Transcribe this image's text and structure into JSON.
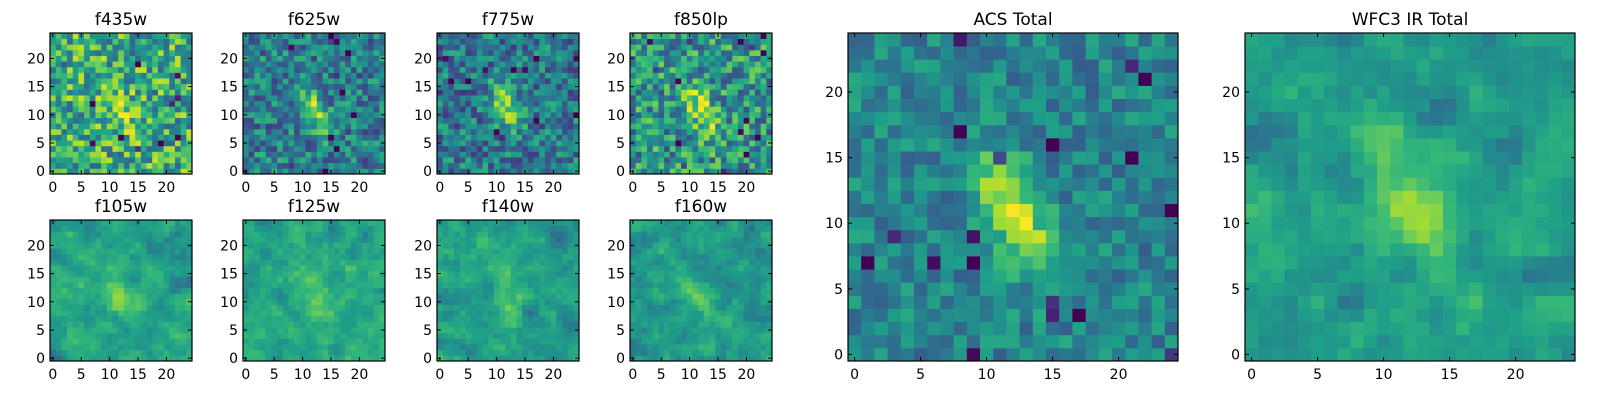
{
  "chart_data": {
    "type": "heatmap",
    "colormap": "viridis",
    "grid_size": 25,
    "panels": [
      {
        "title": "f435w",
        "kind": "noisy",
        "blob_strength": 0.18,
        "noise": 0.3,
        "base": 0.62,
        "xticks": [
          "0",
          "5",
          "10",
          "15",
          "20"
        ],
        "yticks": [
          "0",
          "5",
          "10",
          "15",
          "20"
        ],
        "xlim": [
          0,
          25
        ],
        "ylim": [
          0,
          25
        ]
      },
      {
        "title": "f625w",
        "kind": "noisy",
        "blob_strength": 0.45,
        "noise": 0.24,
        "base": 0.42,
        "xticks": [
          "0",
          "5",
          "10",
          "15",
          "20"
        ],
        "yticks": [
          "0",
          "5",
          "10",
          "15",
          "20"
        ],
        "xlim": [
          0,
          25
        ],
        "ylim": [
          0,
          25
        ]
      },
      {
        "title": "f775w",
        "kind": "noisy",
        "blob_strength": 0.45,
        "noise": 0.24,
        "base": 0.4,
        "xticks": [
          "0",
          "5",
          "10",
          "15",
          "20"
        ],
        "yticks": [
          "0",
          "5",
          "10",
          "15",
          "20"
        ],
        "xlim": [
          0,
          25
        ],
        "ylim": [
          0,
          25
        ]
      },
      {
        "title": "f850lp",
        "kind": "noisy",
        "blob_strength": 0.4,
        "noise": 0.28,
        "base": 0.52,
        "xticks": [
          "0",
          "5",
          "10",
          "15",
          "20"
        ],
        "yticks": [
          "0",
          "5",
          "10",
          "15",
          "20"
        ],
        "xlim": [
          0,
          25
        ],
        "ylim": [
          0,
          25
        ]
      },
      {
        "title": "f105w",
        "kind": "smooth",
        "blob_strength": 0.28,
        "noise": 0.22,
        "base": 0.58,
        "xticks": [
          "0",
          "5",
          "10",
          "15",
          "20"
        ],
        "yticks": [
          "0",
          "5",
          "10",
          "15",
          "20"
        ],
        "xlim": [
          0,
          25
        ],
        "ylim": [
          0,
          25
        ]
      },
      {
        "title": "f125w",
        "kind": "smooth",
        "blob_strength": 0.26,
        "noise": 0.22,
        "base": 0.6,
        "xticks": [
          "0",
          "5",
          "10",
          "15",
          "20"
        ],
        "yticks": [
          "0",
          "5",
          "10",
          "15",
          "20"
        ],
        "xlim": [
          0,
          25
        ],
        "ylim": [
          0,
          25
        ]
      },
      {
        "title": "f140w",
        "kind": "smooth",
        "blob_strength": 0.3,
        "noise": 0.22,
        "base": 0.56,
        "xticks": [
          "0",
          "5",
          "10",
          "15",
          "20"
        ],
        "yticks": [
          "0",
          "5",
          "10",
          "15",
          "20"
        ],
        "xlim": [
          0,
          25
        ],
        "ylim": [
          0,
          25
        ]
      },
      {
        "title": "f160w",
        "kind": "smooth",
        "blob_strength": 0.24,
        "noise": 0.24,
        "base": 0.55,
        "xticks": [
          "0",
          "5",
          "10",
          "15",
          "20"
        ],
        "yticks": [
          "0",
          "5",
          "10",
          "15",
          "20"
        ],
        "xlim": [
          0,
          25
        ],
        "ylim": [
          0,
          25
        ]
      },
      {
        "title": "ACS Total",
        "kind": "noisy",
        "blob_strength": 0.55,
        "noise": 0.16,
        "base": 0.45,
        "xticks": [
          "0",
          "5",
          "10",
          "15",
          "20"
        ],
        "yticks": [
          "0",
          "5",
          "10",
          "15",
          "20"
        ],
        "xlim": [
          0,
          25
        ],
        "ylim": [
          0,
          25
        ]
      },
      {
        "title": "WFC3 IR Total",
        "kind": "smooth",
        "blob_strength": 0.32,
        "noise": 0.2,
        "base": 0.56,
        "xticks": [
          "0",
          "5",
          "10",
          "15",
          "20"
        ],
        "yticks": [
          "0",
          "5",
          "10",
          "15",
          "20"
        ],
        "xlim": [
          0,
          25
        ],
        "ylim": [
          0,
          25
        ]
      }
    ],
    "source_center": [
      12,
      11
    ]
  }
}
